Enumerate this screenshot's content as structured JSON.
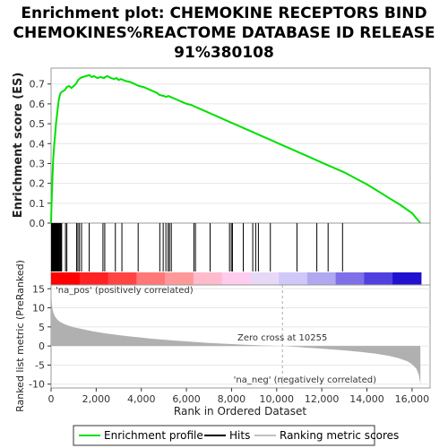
{
  "chart_data": {
    "type": "line",
    "title_lines": [
      "Enrichment plot: CHEMOKINE RECEPTORS BIND",
      "CHEMOKINES%REACTOME DATABASE ID RELEASE",
      "91%380108"
    ],
    "es_panel": {
      "ylabel": "Enrichment score (ES)",
      "ylim": [
        0.0,
        0.78
      ],
      "yticks": [
        "0.0",
        "0.1",
        "0.2",
        "0.3",
        "0.4",
        "0.5",
        "0.6",
        "0.7"
      ],
      "series": {
        "name": "Enrichment profile",
        "color": "#00e000",
        "x": [
          0,
          20,
          40,
          60,
          80,
          100,
          130,
          160,
          190,
          220,
          250,
          280,
          310,
          340,
          380,
          420,
          480,
          540,
          620,
          700,
          800,
          900,
          1000,
          1100,
          1150,
          1200,
          1300,
          1400,
          1550,
          1700,
          1800,
          1900,
          2050,
          2200,
          2350,
          2400,
          2500,
          2650,
          2800,
          2900,
          3000,
          3100,
          3300,
          3500,
          3700,
          3800,
          3900,
          4100,
          4400,
          4700,
          4800,
          5000,
          5100,
          5200,
          5300,
          5400,
          5600,
          5800,
          6000,
          6200,
          6300,
          6400,
          6700,
          7000,
          7300,
          7600,
          7900,
          8100,
          8400,
          8700,
          9000,
          9300,
          9600,
          9900,
          10200,
          10600,
          11000,
          11500,
          12000,
          12500,
          13000,
          13500,
          14000,
          14500,
          15000,
          15500,
          16000,
          16370
        ],
        "y": [
          0.0,
          0.09,
          0.16,
          0.22,
          0.28,
          0.33,
          0.38,
          0.42,
          0.46,
          0.5,
          0.53,
          0.56,
          0.59,
          0.62,
          0.64,
          0.655,
          0.66,
          0.665,
          0.67,
          0.685,
          0.69,
          0.68,
          0.69,
          0.7,
          0.71,
          0.72,
          0.73,
          0.735,
          0.74,
          0.745,
          0.735,
          0.74,
          0.73,
          0.735,
          0.73,
          0.735,
          0.74,
          0.73,
          0.725,
          0.73,
          0.72,
          0.725,
          0.715,
          0.71,
          0.7,
          0.695,
          0.69,
          0.685,
          0.67,
          0.655,
          0.645,
          0.64,
          0.635,
          0.64,
          0.635,
          0.63,
          0.62,
          0.61,
          0.6,
          0.595,
          0.59,
          0.585,
          0.57,
          0.555,
          0.54,
          0.525,
          0.51,
          0.5,
          0.485,
          0.47,
          0.455,
          0.44,
          0.425,
          0.41,
          0.395,
          0.375,
          0.355,
          0.33,
          0.305,
          0.28,
          0.255,
          0.225,
          0.195,
          0.16,
          0.125,
          0.09,
          0.05,
          0.0
        ]
      }
    },
    "hits_panel": {
      "series_name": "Hits",
      "hit_positions": [
        20,
        45,
        70,
        90,
        110,
        130,
        150,
        170,
        190,
        210,
        230,
        250,
        270,
        290,
        310,
        330,
        350,
        380,
        410,
        440,
        470,
        640,
        700,
        1130,
        1190,
        1260,
        1350,
        1690,
        2300,
        2380,
        2850,
        3140,
        3860,
        4820,
        4970,
        5090,
        5190,
        5250,
        5330,
        6330,
        6400,
        7050,
        7910,
        7990,
        8040,
        8520,
        8940,
        9070,
        9190,
        9720,
        10900,
        11780,
        12280,
        12920
      ],
      "bar_colors": [
        "#ff0000",
        "#ff2222",
        "#ff4444",
        "#ff7777",
        "#ff9999",
        "#ffbbcc",
        "#ffccee",
        "#e8d8f8",
        "#d0c8f8",
        "#b0a8f0",
        "#8070e8",
        "#5040e0",
        "#2010d0"
      ]
    },
    "metric_panel": {
      "ylabel": "Ranked list metric (PreRanked)",
      "ylim": [
        -11,
        16
      ],
      "yticks": [
        "15",
        "10",
        "5",
        "0",
        "-5",
        "-10"
      ],
      "fill_color": "#b0b0b0",
      "x": [
        0,
        30,
        60,
        100,
        150,
        200,
        300,
        400,
        600,
        800,
        1000,
        1400,
        1800,
        2200,
        2600,
        3000,
        3500,
        4000,
        4500,
        5000,
        5500,
        6000,
        6500,
        7000,
        7500,
        8000,
        8500,
        9000,
        9500,
        10000,
        10255,
        10800,
        11400,
        12000,
        12600,
        13200,
        13800,
        14400,
        15000,
        15400,
        15800,
        16000,
        16200,
        16300,
        16370
      ],
      "values": [
        15.0,
        11.5,
        9.8,
        8.8,
        8.0,
        7.5,
        6.8,
        6.3,
        5.7,
        5.3,
        4.9,
        4.4,
        3.9,
        3.5,
        3.15,
        2.85,
        2.5,
        2.2,
        1.9,
        1.65,
        1.42,
        1.2,
        1.0,
        0.82,
        0.65,
        0.5,
        0.36,
        0.24,
        0.13,
        0.04,
        0.0,
        -0.2,
        -0.45,
        -0.7,
        -0.95,
        -1.25,
        -1.6,
        -2.0,
        -2.6,
        -3.2,
        -4.0,
        -4.8,
        -6.0,
        -7.5,
        -10.0
      ],
      "zero_cross_label": "Zero cross at 10255",
      "zero_cross": 10255,
      "pos_label": "'na_pos' (positively correlated)",
      "neg_label": "'na_neg' (negatively correlated)",
      "pos_color": "#ff0000",
      "neg_color": "#3333cc"
    },
    "xaxis": {
      "label": "Rank in Ordered Dataset",
      "xlim": [
        0,
        16800
      ],
      "ticks": [
        0,
        2000,
        4000,
        6000,
        8000,
        10000,
        12000,
        14000,
        16000
      ],
      "tick_labels": [
        "0",
        "2,000",
        "4,000",
        "6,000",
        "8,000",
        "10,000",
        "12,000",
        "14,000",
        "16,000"
      ]
    },
    "legend": {
      "placement": "bottom",
      "items": [
        {
          "label": "Enrichment profile",
          "color": "#00e000",
          "kind": "line"
        },
        {
          "label": "Hits",
          "color": "#000000",
          "kind": "tick"
        },
        {
          "label": "Ranking metric scores",
          "color": "#c0c0c0",
          "kind": "line"
        }
      ]
    }
  }
}
